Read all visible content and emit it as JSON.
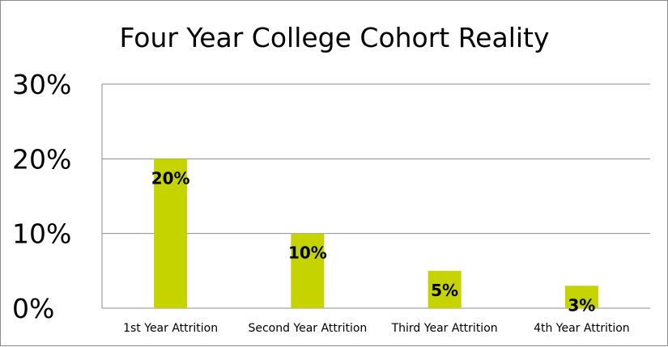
{
  "chart_data": {
    "type": "bar",
    "title": "Four Year College Cohort Reality",
    "xlabel": "",
    "ylabel": "",
    "categories": [
      "1st Year Attrition",
      "Second Year Attrition",
      "Third Year Attrition",
      "4th Year Attrition"
    ],
    "values": [
      20,
      10,
      5,
      3
    ],
    "data_labels": [
      "20%",
      "10%",
      "5%",
      "3%"
    ],
    "ylim": [
      0,
      30
    ],
    "yticks": [
      0,
      10,
      20,
      30
    ],
    "ytick_labels": [
      "0%",
      "10%",
      "20%",
      "30%"
    ],
    "bar_color": "#c5d400",
    "gridline_color": "#8c8c8c",
    "grid": true,
    "legend": "none"
  }
}
